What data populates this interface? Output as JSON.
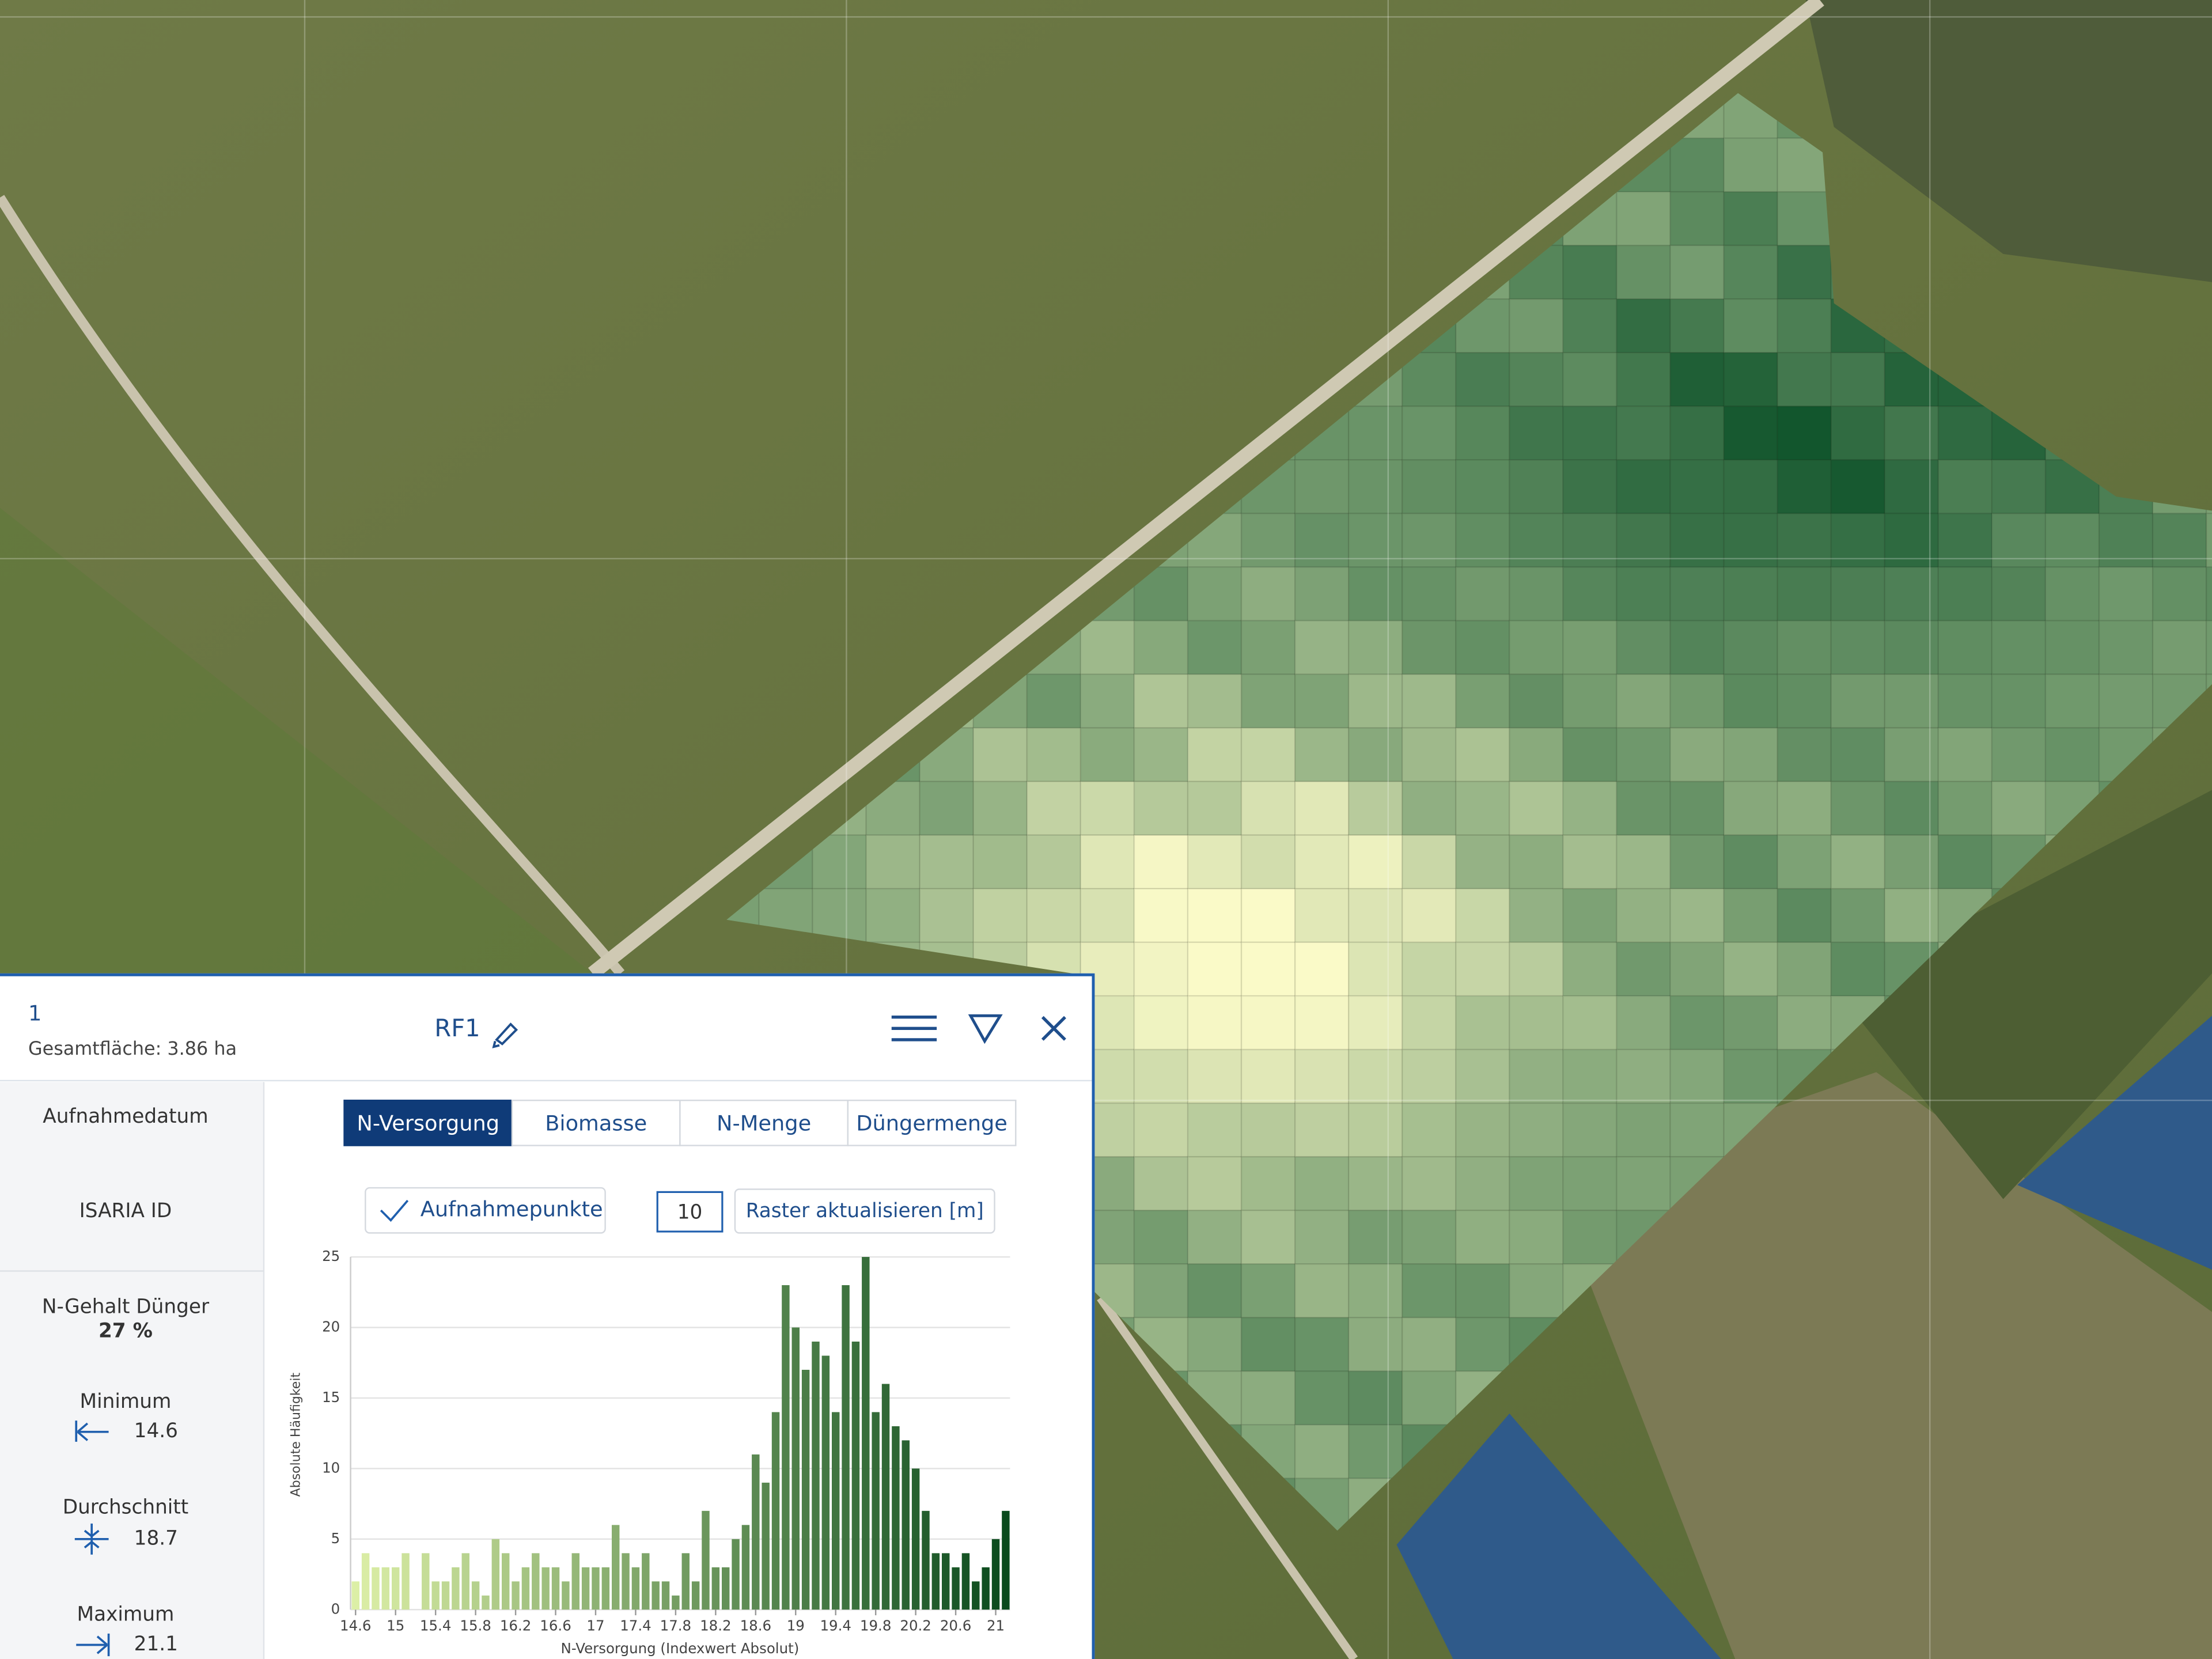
{
  "header": {
    "id": "1",
    "area": "Gesamtfläche: 3.86 ha",
    "name": "RF1"
  },
  "tabs": [
    "N-Versorgung",
    "Biomasse",
    "N-Menge",
    "Düngermenge"
  ],
  "active_tab": 0,
  "controls": {
    "points": "Aufnahmepunkte",
    "raster_size": "10",
    "raster_button": "Raster aktualisieren [m]"
  },
  "info": [
    "Aufnahmedatum",
    "ISARIA ID"
  ],
  "stats": [
    {
      "label": "N-Gehalt Dünger",
      "value": "27 %"
    },
    {
      "label": "Minimum",
      "value": "14.6"
    },
    {
      "label": "Durchschnitt",
      "value": "18.7"
    },
    {
      "label": "Maximum",
      "value": "21.1"
    }
  ],
  "chart_data": {
    "type": "histogram",
    "x_label": "N-Versorgung (Indexwert Absolut)",
    "y_label": "Absolute Häufigkeit",
    "bins": [
      14.55,
      14.65,
      14.75,
      14.85,
      14.95,
      15.05,
      15.15,
      15.25,
      15.35,
      15.45,
      15.55,
      15.65,
      15.75,
      15.85,
      15.95,
      16.05,
      16.15,
      16.25,
      16.35,
      16.45,
      16.55,
      16.65,
      16.75,
      16.85,
      16.95,
      17.05,
      17.15,
      17.25,
      17.35,
      17.45,
      17.55,
      17.65,
      17.75,
      17.85,
      17.95,
      18.05,
      18.15,
      18.25,
      18.35,
      18.45,
      18.55,
      18.65,
      18.75,
      18.85,
      18.95,
      19.05,
      19.15,
      19.25,
      19.35,
      19.45,
      19.55,
      19.65,
      19.75,
      19.85,
      19.95,
      20.05,
      20.15,
      20.25,
      20.35,
      20.45,
      20.55,
      20.65,
      20.75,
      20.85,
      20.95,
      21.05,
      21.15
    ],
    "values": [
      2,
      4,
      3,
      3,
      3,
      4,
      0,
      4,
      2,
      2,
      3,
      4,
      2,
      1,
      5,
      4,
      2,
      3,
      4,
      3,
      3,
      2,
      4,
      3,
      3,
      3,
      6,
      4,
      3,
      4,
      2,
      2,
      1,
      4,
      2,
      7,
      3,
      3,
      5,
      6,
      11,
      9,
      14,
      23,
      20,
      17,
      19,
      18,
      14,
      23,
      19,
      25,
      14,
      16,
      13,
      12,
      10,
      7,
      4,
      4,
      3,
      4,
      2,
      3,
      5,
      7
    ],
    "color_scale": [
      "#dcefa6",
      "#0a4a1d"
    ],
    "xlim": [
      14.55,
      21.2
    ],
    "ylim": [
      0,
      25
    ],
    "xticks": [
      14.6,
      15,
      15.4,
      15.8,
      16.2,
      16.6,
      17,
      17.4,
      17.8,
      18.2,
      18.6,
      19,
      19.4,
      19.8,
      20.2,
      20.6,
      21
    ],
    "yticks": [
      0,
      5,
      10,
      15,
      20,
      25
    ],
    "grid": true
  }
}
